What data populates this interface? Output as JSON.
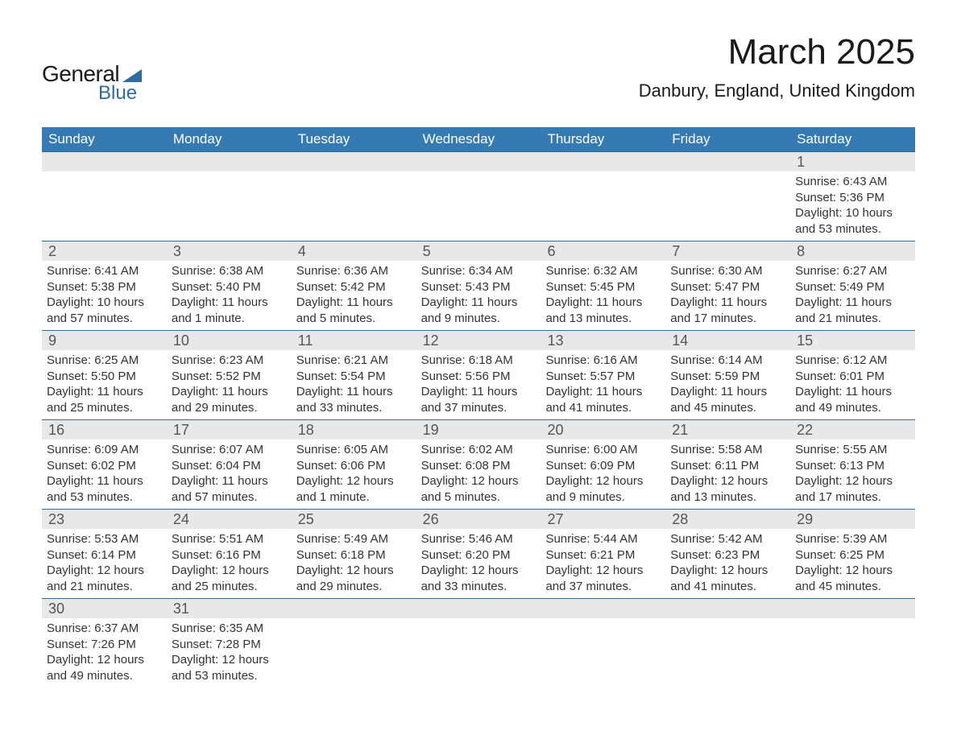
{
  "logo": {
    "text1": "General",
    "text2": "Blue",
    "accent_color": "#2d6ca2"
  },
  "title": "March 2025",
  "location": "Danbury, England, United Kingdom",
  "header_bg": "#367ab3",
  "daynum_bg": "#e8e8e8",
  "border_color": "#2d6ca2",
  "text_color": "#333333",
  "weekdays": [
    "Sunday",
    "Monday",
    "Tuesday",
    "Wednesday",
    "Thursday",
    "Friday",
    "Saturday"
  ],
  "weeks": [
    [
      {
        "day": "",
        "sunrise": "",
        "sunset": "",
        "daylight": ""
      },
      {
        "day": "",
        "sunrise": "",
        "sunset": "",
        "daylight": ""
      },
      {
        "day": "",
        "sunrise": "",
        "sunset": "",
        "daylight": ""
      },
      {
        "day": "",
        "sunrise": "",
        "sunset": "",
        "daylight": ""
      },
      {
        "day": "",
        "sunrise": "",
        "sunset": "",
        "daylight": ""
      },
      {
        "day": "",
        "sunrise": "",
        "sunset": "",
        "daylight": ""
      },
      {
        "day": "1",
        "sunrise": "Sunrise: 6:43 AM",
        "sunset": "Sunset: 5:36 PM",
        "daylight": "Daylight: 10 hours and 53 minutes."
      }
    ],
    [
      {
        "day": "2",
        "sunrise": "Sunrise: 6:41 AM",
        "sunset": "Sunset: 5:38 PM",
        "daylight": "Daylight: 10 hours and 57 minutes."
      },
      {
        "day": "3",
        "sunrise": "Sunrise: 6:38 AM",
        "sunset": "Sunset: 5:40 PM",
        "daylight": "Daylight: 11 hours and 1 minute."
      },
      {
        "day": "4",
        "sunrise": "Sunrise: 6:36 AM",
        "sunset": "Sunset: 5:42 PM",
        "daylight": "Daylight: 11 hours and 5 minutes."
      },
      {
        "day": "5",
        "sunrise": "Sunrise: 6:34 AM",
        "sunset": "Sunset: 5:43 PM",
        "daylight": "Daylight: 11 hours and 9 minutes."
      },
      {
        "day": "6",
        "sunrise": "Sunrise: 6:32 AM",
        "sunset": "Sunset: 5:45 PM",
        "daylight": "Daylight: 11 hours and 13 minutes."
      },
      {
        "day": "7",
        "sunrise": "Sunrise: 6:30 AM",
        "sunset": "Sunset: 5:47 PM",
        "daylight": "Daylight: 11 hours and 17 minutes."
      },
      {
        "day": "8",
        "sunrise": "Sunrise: 6:27 AM",
        "sunset": "Sunset: 5:49 PM",
        "daylight": "Daylight: 11 hours and 21 minutes."
      }
    ],
    [
      {
        "day": "9",
        "sunrise": "Sunrise: 6:25 AM",
        "sunset": "Sunset: 5:50 PM",
        "daylight": "Daylight: 11 hours and 25 minutes."
      },
      {
        "day": "10",
        "sunrise": "Sunrise: 6:23 AM",
        "sunset": "Sunset: 5:52 PM",
        "daylight": "Daylight: 11 hours and 29 minutes."
      },
      {
        "day": "11",
        "sunrise": "Sunrise: 6:21 AM",
        "sunset": "Sunset: 5:54 PM",
        "daylight": "Daylight: 11 hours and 33 minutes."
      },
      {
        "day": "12",
        "sunrise": "Sunrise: 6:18 AM",
        "sunset": "Sunset: 5:56 PM",
        "daylight": "Daylight: 11 hours and 37 minutes."
      },
      {
        "day": "13",
        "sunrise": "Sunrise: 6:16 AM",
        "sunset": "Sunset: 5:57 PM",
        "daylight": "Daylight: 11 hours and 41 minutes."
      },
      {
        "day": "14",
        "sunrise": "Sunrise: 6:14 AM",
        "sunset": "Sunset: 5:59 PM",
        "daylight": "Daylight: 11 hours and 45 minutes."
      },
      {
        "day": "15",
        "sunrise": "Sunrise: 6:12 AM",
        "sunset": "Sunset: 6:01 PM",
        "daylight": "Daylight: 11 hours and 49 minutes."
      }
    ],
    [
      {
        "day": "16",
        "sunrise": "Sunrise: 6:09 AM",
        "sunset": "Sunset: 6:02 PM",
        "daylight": "Daylight: 11 hours and 53 minutes."
      },
      {
        "day": "17",
        "sunrise": "Sunrise: 6:07 AM",
        "sunset": "Sunset: 6:04 PM",
        "daylight": "Daylight: 11 hours and 57 minutes."
      },
      {
        "day": "18",
        "sunrise": "Sunrise: 6:05 AM",
        "sunset": "Sunset: 6:06 PM",
        "daylight": "Daylight: 12 hours and 1 minute."
      },
      {
        "day": "19",
        "sunrise": "Sunrise: 6:02 AM",
        "sunset": "Sunset: 6:08 PM",
        "daylight": "Daylight: 12 hours and 5 minutes."
      },
      {
        "day": "20",
        "sunrise": "Sunrise: 6:00 AM",
        "sunset": "Sunset: 6:09 PM",
        "daylight": "Daylight: 12 hours and 9 minutes."
      },
      {
        "day": "21",
        "sunrise": "Sunrise: 5:58 AM",
        "sunset": "Sunset: 6:11 PM",
        "daylight": "Daylight: 12 hours and 13 minutes."
      },
      {
        "day": "22",
        "sunrise": "Sunrise: 5:55 AM",
        "sunset": "Sunset: 6:13 PM",
        "daylight": "Daylight: 12 hours and 17 minutes."
      }
    ],
    [
      {
        "day": "23",
        "sunrise": "Sunrise: 5:53 AM",
        "sunset": "Sunset: 6:14 PM",
        "daylight": "Daylight: 12 hours and 21 minutes."
      },
      {
        "day": "24",
        "sunrise": "Sunrise: 5:51 AM",
        "sunset": "Sunset: 6:16 PM",
        "daylight": "Daylight: 12 hours and 25 minutes."
      },
      {
        "day": "25",
        "sunrise": "Sunrise: 5:49 AM",
        "sunset": "Sunset: 6:18 PM",
        "daylight": "Daylight: 12 hours and 29 minutes."
      },
      {
        "day": "26",
        "sunrise": "Sunrise: 5:46 AM",
        "sunset": "Sunset: 6:20 PM",
        "daylight": "Daylight: 12 hours and 33 minutes."
      },
      {
        "day": "27",
        "sunrise": "Sunrise: 5:44 AM",
        "sunset": "Sunset: 6:21 PM",
        "daylight": "Daylight: 12 hours and 37 minutes."
      },
      {
        "day": "28",
        "sunrise": "Sunrise: 5:42 AM",
        "sunset": "Sunset: 6:23 PM",
        "daylight": "Daylight: 12 hours and 41 minutes."
      },
      {
        "day": "29",
        "sunrise": "Sunrise: 5:39 AM",
        "sunset": "Sunset: 6:25 PM",
        "daylight": "Daylight: 12 hours and 45 minutes."
      }
    ],
    [
      {
        "day": "30",
        "sunrise": "Sunrise: 6:37 AM",
        "sunset": "Sunset: 7:26 PM",
        "daylight": "Daylight: 12 hours and 49 minutes."
      },
      {
        "day": "31",
        "sunrise": "Sunrise: 6:35 AM",
        "sunset": "Sunset: 7:28 PM",
        "daylight": "Daylight: 12 hours and 53 minutes."
      },
      {
        "day": "",
        "sunrise": "",
        "sunset": "",
        "daylight": ""
      },
      {
        "day": "",
        "sunrise": "",
        "sunset": "",
        "daylight": ""
      },
      {
        "day": "",
        "sunrise": "",
        "sunset": "",
        "daylight": ""
      },
      {
        "day": "",
        "sunrise": "",
        "sunset": "",
        "daylight": ""
      },
      {
        "day": "",
        "sunrise": "",
        "sunset": "",
        "daylight": ""
      }
    ]
  ]
}
